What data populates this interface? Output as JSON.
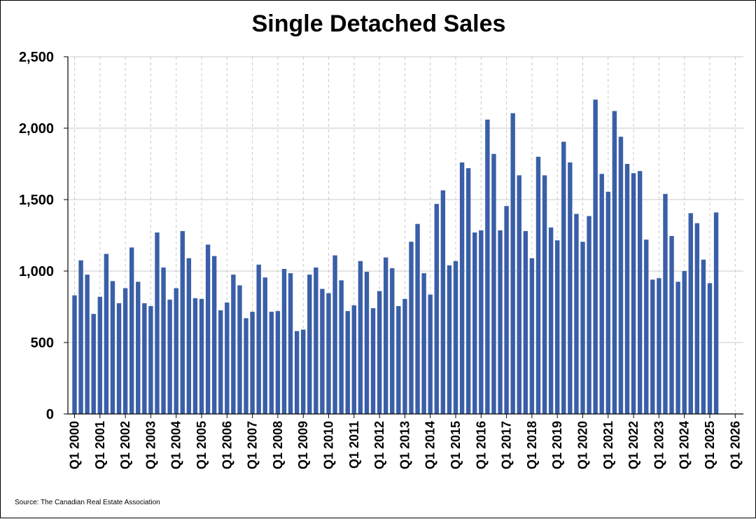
{
  "chart_data": {
    "type": "bar",
    "title": "Single Detached Sales",
    "source": "Source: The Canadian Real Estate Association",
    "xlabel": "",
    "ylabel": "",
    "ylim": [
      0,
      2500
    ],
    "yticks": [
      0,
      500,
      1000,
      1500,
      2000,
      2500
    ],
    "ytick_labels": [
      "0",
      "500",
      "1,000",
      "1,500",
      "2,000",
      "2,500"
    ],
    "xtick_labels": [
      "Q1 2000",
      "Q1 2001",
      "Q1 2002",
      "Q1 2003",
      "Q1 2004",
      "Q1 2005",
      "Q1 2006",
      "Q1 2007",
      "Q1 2008",
      "Q1 2009",
      "Q1 2010",
      "Q1 2011",
      "Q1 2012",
      "Q1 2013",
      "Q1 2014",
      "Q1 2015",
      "Q1 2016",
      "Q1 2017",
      "Q1 2018",
      "Q1 2019",
      "Q1 2020",
      "Q1 2021",
      "Q1 2022",
      "Q1 2023",
      "Q1 2024",
      "Q1 2025",
      "Q1 2026"
    ],
    "x_start": "Q1 2000",
    "grid": "horizontal solid, vertical dashed",
    "bar_color": "#3a5fa8",
    "values": [
      830,
      1075,
      975,
      700,
      820,
      1120,
      930,
      775,
      880,
      1165,
      925,
      775,
      755,
      1270,
      1025,
      800,
      880,
      1280,
      1090,
      810,
      805,
      1185,
      1105,
      725,
      780,
      975,
      900,
      670,
      715,
      1045,
      955,
      715,
      720,
      1015,
      985,
      580,
      590,
      975,
      1025,
      875,
      845,
      1110,
      935,
      720,
      760,
      1070,
      995,
      740,
      860,
      1095,
      1020,
      755,
      805,
      1205,
      1330,
      985,
      835,
      1470,
      1565,
      1040,
      1070,
      1760,
      1720,
      1270,
      1285,
      2060,
      1820,
      1285,
      1455,
      2105,
      1670,
      1280,
      1090,
      1800,
      1670,
      1305,
      1215,
      1905,
      1760,
      1400,
      1205,
      1385,
      2200,
      1680,
      1555,
      2120,
      1940,
      1750,
      1685,
      1700,
      1220,
      940,
      950,
      1540,
      1245,
      925,
      1000,
      1405,
      1335,
      1080,
      915,
      1410
    ]
  }
}
